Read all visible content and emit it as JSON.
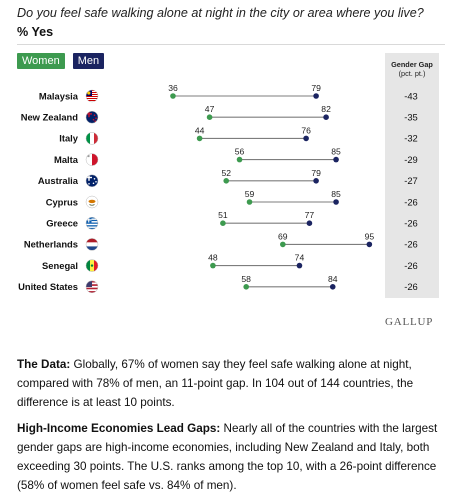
{
  "header": {
    "question": "Do you feel safe walking alone at night in the city or area where you live?",
    "subtitle": "% Yes"
  },
  "legend": {
    "women_label": "Women",
    "men_label": "Men"
  },
  "gap_column": {
    "title": "Gender Gap",
    "unit": "(pct. pt.)"
  },
  "colors": {
    "women": "#3d9a4f",
    "men": "#1b2461",
    "connector": "#7d7d7d",
    "gap_panel": "#e6e6e6"
  },
  "chart_data": {
    "type": "dumbbell",
    "title": "Do you feel safe walking alone at night in the city or area where you live?",
    "subtitle": "% Yes",
    "categories": [
      "Malaysia",
      "New Zealand",
      "Italy",
      "Malta",
      "Australia",
      "Cyprus",
      "Greece",
      "Netherlands",
      "Senegal",
      "United States"
    ],
    "series": [
      {
        "name": "Women",
        "values": [
          36,
          47,
          44,
          56,
          52,
          59,
          51,
          69,
          48,
          58
        ]
      },
      {
        "name": "Men",
        "values": [
          79,
          82,
          76,
          85,
          79,
          85,
          77,
          95,
          74,
          84
        ]
      }
    ],
    "gender_gap": [
      "-43",
      "-35",
      "-32",
      "-29",
      "-27",
      "-26",
      "-26",
      "-26",
      "-26",
      "-26"
    ],
    "flag_icons": [
      "malaysia-flag-icon",
      "new-zealand-flag-icon",
      "italy-flag-icon",
      "malta-flag-icon",
      "australia-flag-icon",
      "cyprus-flag-icon",
      "greece-flag-icon",
      "netherlands-flag-icon",
      "senegal-flag-icon",
      "united-states-flag-icon"
    ],
    "xlim": [
      30,
      100
    ],
    "grid": false,
    "legend_position": "top-left"
  },
  "brand": "GALLUP",
  "paragraphs": {
    "data_heading": "The Data:",
    "data_text": " Globally, 67% of women say they feel safe walking alone at night, compared with 78% of men, an 11-point gap. In 104 out of 144 countries, the difference is at least 10 points.",
    "gaps_heading": "High-Income Economies Lead Gaps:",
    "gaps_text": " Nearly all of the countries with the largest gender gaps are high-income economies, including New Zealand and Italy, both exceeding 30 points. The U.S. ranks among the top 10, with a 26-point difference (58% of women feel safe vs. 84% of men)."
  }
}
